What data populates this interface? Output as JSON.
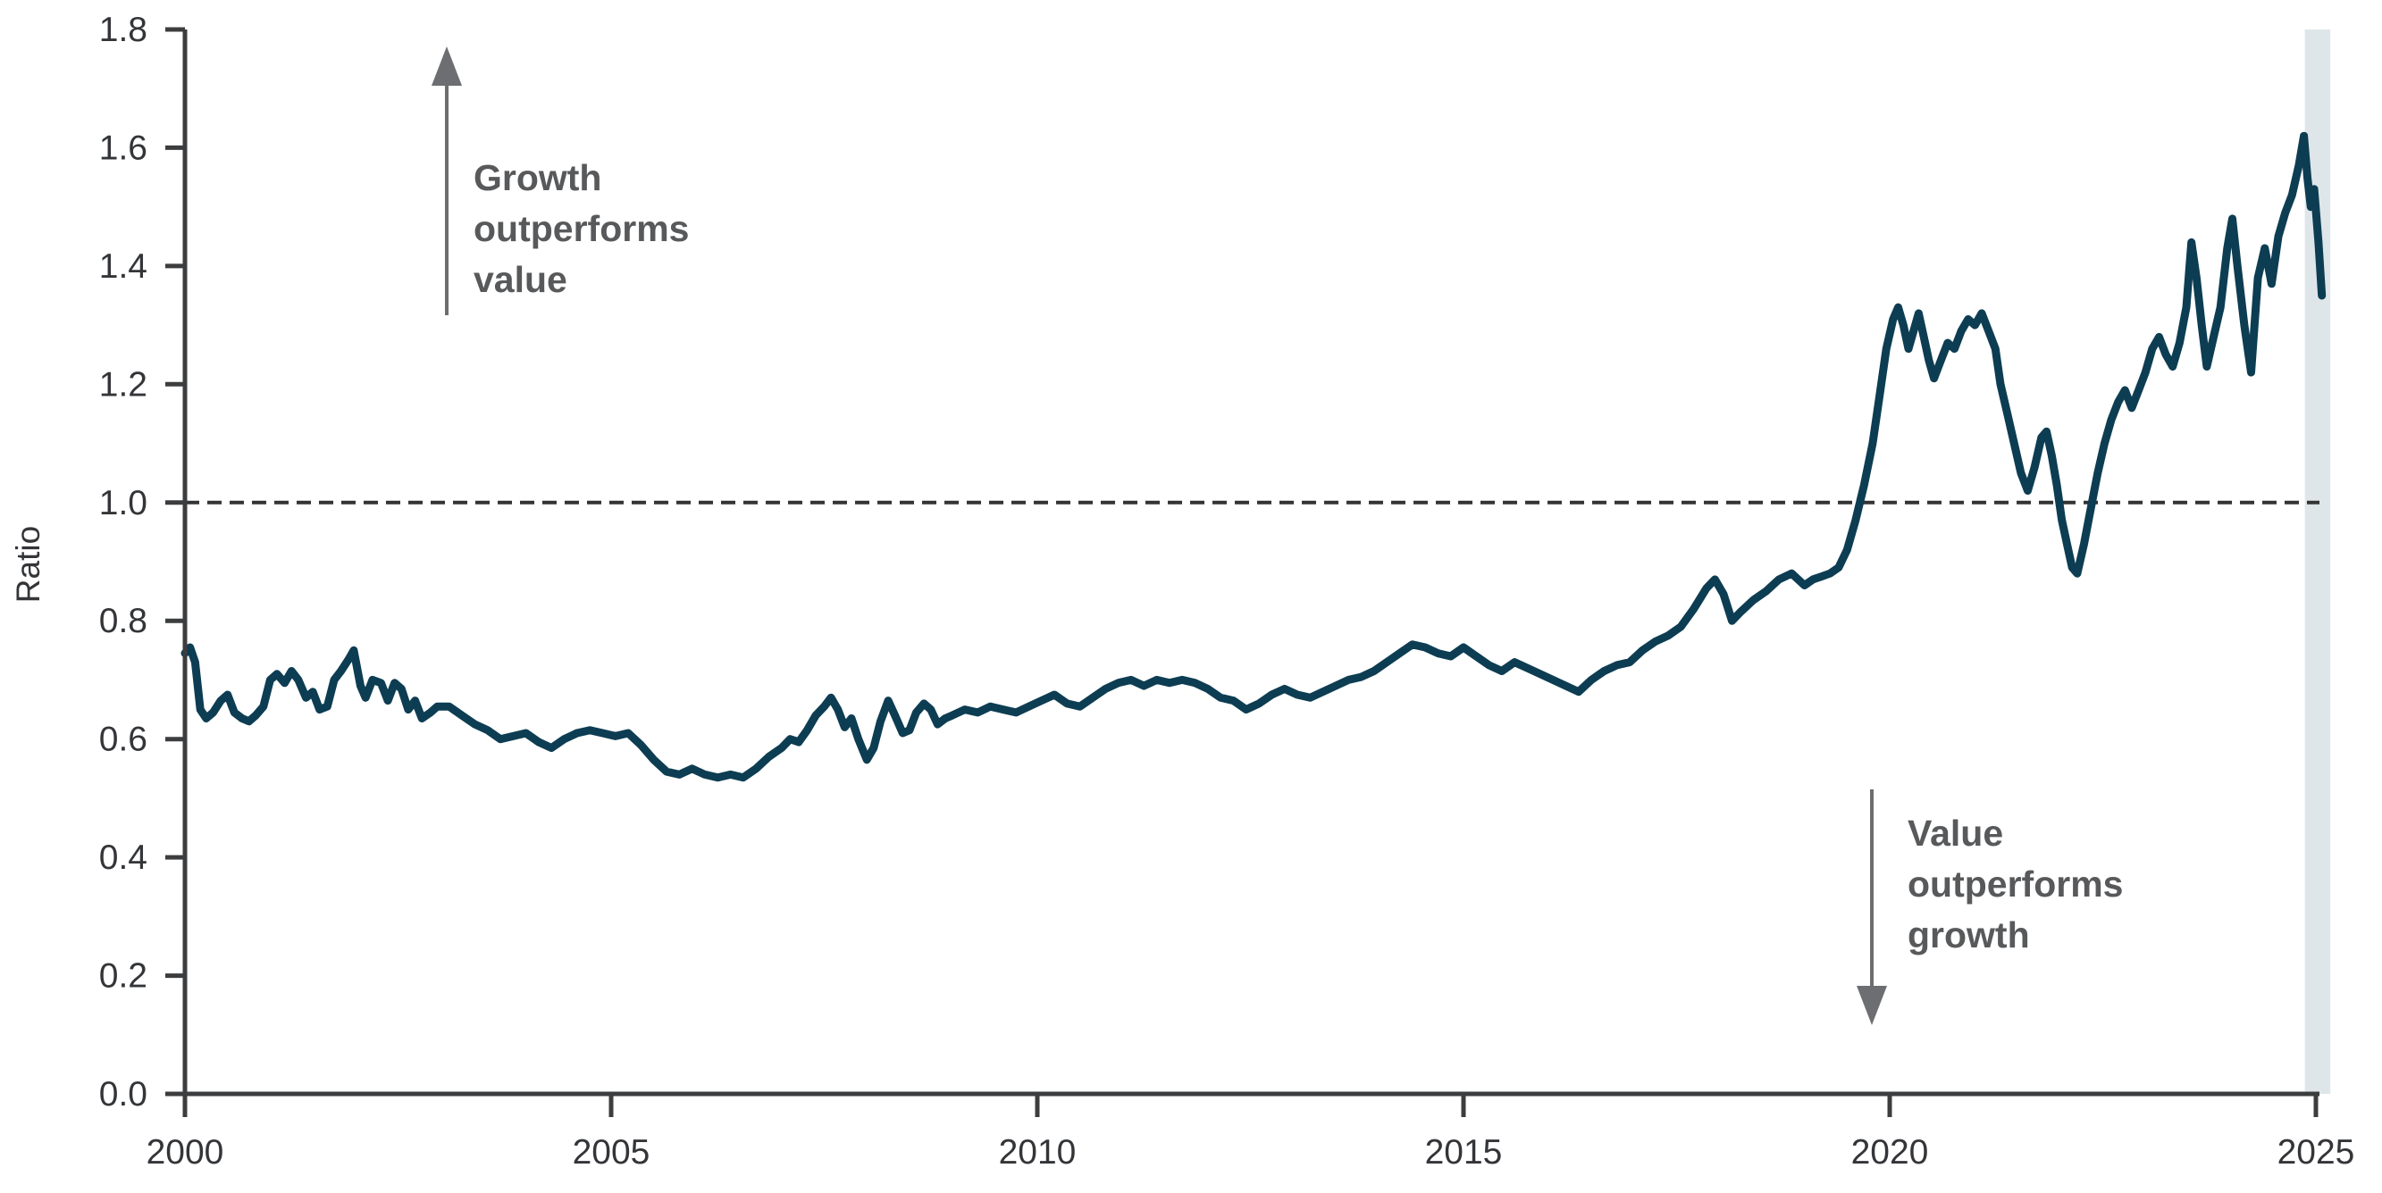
{
  "chart_data": {
    "type": "line",
    "title": "",
    "xlabel": "",
    "ylabel": "Ratio",
    "x_ticks": [
      "2000",
      "2005",
      "2010",
      "2015",
      "2020",
      "2025"
    ],
    "y_ticks": [
      "0.0",
      "0.2",
      "0.4",
      "0.6",
      "0.8",
      "1.0",
      "1.2",
      "1.4",
      "1.6",
      "1.8"
    ],
    "xlim": [
      2000,
      2025.2
    ],
    "ylim": [
      0.0,
      1.8
    ],
    "grid": false,
    "legend": false,
    "reference_line": {
      "value": 1.0,
      "style": "dashed",
      "color": "#333333"
    },
    "highlight_band": {
      "x_start": 2024.87,
      "x_end": 2025.17,
      "color": "#dfe6e9"
    },
    "annotations": [
      {
        "id": "growth-outperforms",
        "arrow": "up",
        "lines": [
          "Growth",
          "outperforms",
          "value"
        ]
      },
      {
        "id": "value-outperforms",
        "arrow": "down",
        "lines": [
          "Value",
          "outperforms",
          "growth"
        ]
      }
    ],
    "series": [
      {
        "name": "growth-vs-value-ratio",
        "color": "#0d3d52",
        "points": [
          [
            2000.0,
            0.745
          ],
          [
            2000.06,
            0.755
          ],
          [
            2000.12,
            0.73
          ],
          [
            2000.18,
            0.65
          ],
          [
            2000.25,
            0.635
          ],
          [
            2000.33,
            0.645
          ],
          [
            2000.42,
            0.665
          ],
          [
            2000.5,
            0.675
          ],
          [
            2000.58,
            0.645
          ],
          [
            2000.67,
            0.635
          ],
          [
            2000.75,
            0.63
          ],
          [
            2000.83,
            0.64
          ],
          [
            2000.92,
            0.655
          ],
          [
            2001.0,
            0.7
          ],
          [
            2001.08,
            0.71
          ],
          [
            2001.17,
            0.695
          ],
          [
            2001.25,
            0.715
          ],
          [
            2001.33,
            0.7
          ],
          [
            2001.42,
            0.67
          ],
          [
            2001.5,
            0.68
          ],
          [
            2001.58,
            0.65
          ],
          [
            2001.67,
            0.655
          ],
          [
            2001.75,
            0.7
          ],
          [
            2001.83,
            0.715
          ],
          [
            2001.92,
            0.735
          ],
          [
            2001.98,
            0.75
          ],
          [
            2002.06,
            0.69
          ],
          [
            2002.12,
            0.67
          ],
          [
            2002.2,
            0.7
          ],
          [
            2002.3,
            0.695
          ],
          [
            2002.38,
            0.665
          ],
          [
            2002.46,
            0.695
          ],
          [
            2002.54,
            0.685
          ],
          [
            2002.62,
            0.65
          ],
          [
            2002.7,
            0.665
          ],
          [
            2002.78,
            0.635
          ],
          [
            2002.88,
            0.645
          ],
          [
            2002.96,
            0.655
          ],
          [
            2003.1,
            0.655
          ],
          [
            2003.25,
            0.64
          ],
          [
            2003.4,
            0.625
          ],
          [
            2003.55,
            0.615
          ],
          [
            2003.7,
            0.6
          ],
          [
            2003.85,
            0.605
          ],
          [
            2004.0,
            0.61
          ],
          [
            2004.15,
            0.595
          ],
          [
            2004.3,
            0.585
          ],
          [
            2004.45,
            0.6
          ],
          [
            2004.6,
            0.61
          ],
          [
            2004.75,
            0.615
          ],
          [
            2004.9,
            0.61
          ],
          [
            2005.05,
            0.605
          ],
          [
            2005.2,
            0.61
          ],
          [
            2005.35,
            0.59
          ],
          [
            2005.5,
            0.565
          ],
          [
            2005.65,
            0.545
          ],
          [
            2005.8,
            0.54
          ],
          [
            2005.95,
            0.55
          ],
          [
            2006.1,
            0.54
          ],
          [
            2006.25,
            0.535
          ],
          [
            2006.4,
            0.54
          ],
          [
            2006.55,
            0.535
          ],
          [
            2006.7,
            0.55
          ],
          [
            2006.85,
            0.57
          ],
          [
            2007.0,
            0.585
          ],
          [
            2007.1,
            0.6
          ],
          [
            2007.2,
            0.595
          ],
          [
            2007.3,
            0.615
          ],
          [
            2007.4,
            0.64
          ],
          [
            2007.5,
            0.655
          ],
          [
            2007.58,
            0.67
          ],
          [
            2007.66,
            0.65
          ],
          [
            2007.74,
            0.62
          ],
          [
            2007.82,
            0.635
          ],
          [
            2007.9,
            0.6
          ],
          [
            2008.0,
            0.565
          ],
          [
            2008.08,
            0.585
          ],
          [
            2008.16,
            0.63
          ],
          [
            2008.25,
            0.665
          ],
          [
            2008.33,
            0.64
          ],
          [
            2008.42,
            0.61
          ],
          [
            2008.5,
            0.615
          ],
          [
            2008.58,
            0.645
          ],
          [
            2008.67,
            0.66
          ],
          [
            2008.75,
            0.65
          ],
          [
            2008.83,
            0.625
          ],
          [
            2008.92,
            0.635
          ],
          [
            2009.0,
            0.64
          ],
          [
            2009.15,
            0.65
          ],
          [
            2009.3,
            0.645
          ],
          [
            2009.45,
            0.655
          ],
          [
            2009.6,
            0.65
          ],
          [
            2009.75,
            0.645
          ],
          [
            2009.9,
            0.655
          ],
          [
            2010.05,
            0.665
          ],
          [
            2010.2,
            0.675
          ],
          [
            2010.35,
            0.66
          ],
          [
            2010.5,
            0.655
          ],
          [
            2010.65,
            0.67
          ],
          [
            2010.8,
            0.685
          ],
          [
            2010.95,
            0.695
          ],
          [
            2011.1,
            0.7
          ],
          [
            2011.25,
            0.69
          ],
          [
            2011.4,
            0.7
          ],
          [
            2011.55,
            0.695
          ],
          [
            2011.7,
            0.7
          ],
          [
            2011.85,
            0.695
          ],
          [
            2012.0,
            0.685
          ],
          [
            2012.15,
            0.67
          ],
          [
            2012.3,
            0.665
          ],
          [
            2012.45,
            0.65
          ],
          [
            2012.6,
            0.66
          ],
          [
            2012.75,
            0.675
          ],
          [
            2012.9,
            0.685
          ],
          [
            2013.05,
            0.675
          ],
          [
            2013.2,
            0.67
          ],
          [
            2013.35,
            0.68
          ],
          [
            2013.5,
            0.69
          ],
          [
            2013.65,
            0.7
          ],
          [
            2013.8,
            0.705
          ],
          [
            2013.95,
            0.715
          ],
          [
            2014.1,
            0.73
          ],
          [
            2014.25,
            0.745
          ],
          [
            2014.4,
            0.76
          ],
          [
            2014.55,
            0.755
          ],
          [
            2014.7,
            0.745
          ],
          [
            2014.85,
            0.74
          ],
          [
            2015.0,
            0.755
          ],
          [
            2015.15,
            0.74
          ],
          [
            2015.3,
            0.725
          ],
          [
            2015.45,
            0.715
          ],
          [
            2015.6,
            0.73
          ],
          [
            2015.75,
            0.72
          ],
          [
            2015.9,
            0.71
          ],
          [
            2016.05,
            0.7
          ],
          [
            2016.2,
            0.69
          ],
          [
            2016.35,
            0.68
          ],
          [
            2016.5,
            0.7
          ],
          [
            2016.65,
            0.715
          ],
          [
            2016.8,
            0.725
          ],
          [
            2016.95,
            0.73
          ],
          [
            2017.1,
            0.75
          ],
          [
            2017.25,
            0.765
          ],
          [
            2017.4,
            0.775
          ],
          [
            2017.55,
            0.79
          ],
          [
            2017.7,
            0.82
          ],
          [
            2017.85,
            0.855
          ],
          [
            2017.95,
            0.87
          ],
          [
            2018.05,
            0.845
          ],
          [
            2018.15,
            0.8
          ],
          [
            2018.25,
            0.815
          ],
          [
            2018.4,
            0.835
          ],
          [
            2018.55,
            0.85
          ],
          [
            2018.7,
            0.87
          ],
          [
            2018.85,
            0.88
          ],
          [
            2019.0,
            0.86
          ],
          [
            2019.1,
            0.87
          ],
          [
            2019.2,
            0.875
          ],
          [
            2019.3,
            0.88
          ],
          [
            2019.4,
            0.89
          ],
          [
            2019.5,
            0.92
          ],
          [
            2019.6,
            0.97
          ],
          [
            2019.7,
            1.03
          ],
          [
            2019.8,
            1.1
          ],
          [
            2019.88,
            1.18
          ],
          [
            2019.96,
            1.26
          ],
          [
            2020.04,
            1.31
          ],
          [
            2020.1,
            1.33
          ],
          [
            2020.16,
            1.3
          ],
          [
            2020.22,
            1.26
          ],
          [
            2020.28,
            1.29
          ],
          [
            2020.34,
            1.32
          ],
          [
            2020.4,
            1.28
          ],
          [
            2020.46,
            1.24
          ],
          [
            2020.52,
            1.21
          ],
          [
            2020.6,
            1.24
          ],
          [
            2020.68,
            1.27
          ],
          [
            2020.76,
            1.26
          ],
          [
            2020.84,
            1.29
          ],
          [
            2020.92,
            1.31
          ],
          [
            2021.0,
            1.3
          ],
          [
            2021.08,
            1.32
          ],
          [
            2021.16,
            1.29
          ],
          [
            2021.24,
            1.26
          ],
          [
            2021.3,
            1.2
          ],
          [
            2021.38,
            1.15
          ],
          [
            2021.46,
            1.1
          ],
          [
            2021.54,
            1.05
          ],
          [
            2021.62,
            1.02
          ],
          [
            2021.7,
            1.06
          ],
          [
            2021.78,
            1.11
          ],
          [
            2021.84,
            1.12
          ],
          [
            2021.9,
            1.08
          ],
          [
            2021.96,
            1.03
          ],
          [
            2022.02,
            0.97
          ],
          [
            2022.08,
            0.93
          ],
          [
            2022.14,
            0.89
          ],
          [
            2022.2,
            0.88
          ],
          [
            2022.28,
            0.93
          ],
          [
            2022.36,
            0.99
          ],
          [
            2022.44,
            1.05
          ],
          [
            2022.52,
            1.1
          ],
          [
            2022.6,
            1.14
          ],
          [
            2022.68,
            1.17
          ],
          [
            2022.76,
            1.19
          ],
          [
            2022.84,
            1.16
          ],
          [
            2022.92,
            1.19
          ],
          [
            2023.0,
            1.22
          ],
          [
            2023.08,
            1.26
          ],
          [
            2023.16,
            1.28
          ],
          [
            2023.24,
            1.25
          ],
          [
            2023.32,
            1.23
          ],
          [
            2023.4,
            1.27
          ],
          [
            2023.48,
            1.33
          ],
          [
            2023.54,
            1.44
          ],
          [
            2023.6,
            1.38
          ],
          [
            2023.66,
            1.3
          ],
          [
            2023.72,
            1.23
          ],
          [
            2023.8,
            1.28
          ],
          [
            2023.88,
            1.33
          ],
          [
            2023.96,
            1.43
          ],
          [
            2024.02,
            1.48
          ],
          [
            2024.08,
            1.4
          ],
          [
            2024.16,
            1.3
          ],
          [
            2024.24,
            1.22
          ],
          [
            2024.32,
            1.38
          ],
          [
            2024.4,
            1.43
          ],
          [
            2024.48,
            1.37
          ],
          [
            2024.56,
            1.45
          ],
          [
            2024.64,
            1.49
          ],
          [
            2024.72,
            1.52
          ],
          [
            2024.8,
            1.57
          ],
          [
            2024.86,
            1.62
          ],
          [
            2024.9,
            1.55
          ],
          [
            2024.94,
            1.5
          ],
          [
            2024.98,
            1.53
          ],
          [
            2025.03,
            1.44
          ],
          [
            2025.07,
            1.35
          ]
        ]
      }
    ]
  },
  "colors": {
    "axis": "#3c3d3f",
    "tick_label": "#333538",
    "annotation_text": "#58595b",
    "arrow": "#6d6e71",
    "line": "#0d3d52",
    "band": "#dfe6e9",
    "dash": "#333333",
    "background": "#ffffff"
  }
}
